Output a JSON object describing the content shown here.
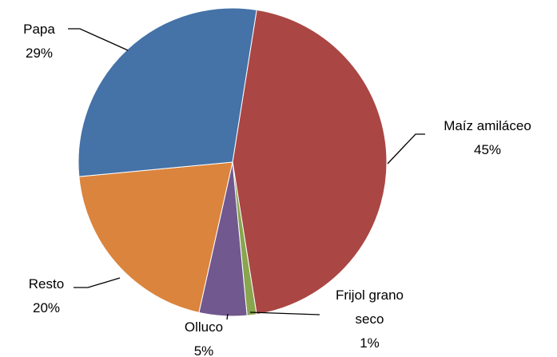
{
  "chart_data": {
    "type": "pie",
    "categories": [
      "Maíz amiláceo",
      "Frijol grano seco",
      "Olluco",
      "Resto",
      "Papa"
    ],
    "values": [
      45,
      1,
      5,
      20,
      29
    ],
    "value_labels": [
      "45%",
      "1%",
      "5%",
      "20%",
      "29%"
    ],
    "colors": [
      "#aa4643",
      "#89a54e",
      "#71588f",
      "#db843d",
      "#4572a7"
    ]
  }
}
